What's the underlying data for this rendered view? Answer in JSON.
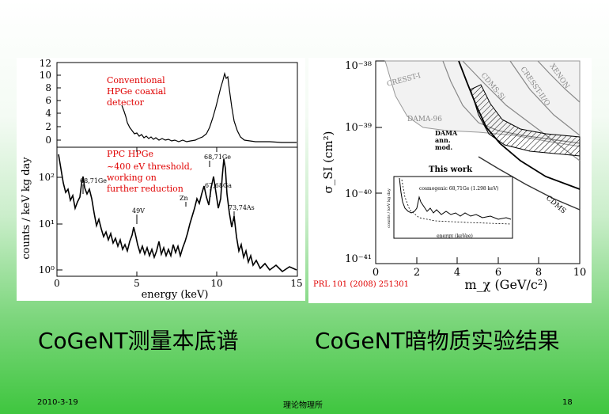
{
  "left_panel": {
    "top_annotation": [
      "Conventional",
      "HPGe coaxial",
      "detector"
    ],
    "bottom_annotation": [
      "PPC HPGe",
      "~400 eV threshold,",
      "working on",
      "further reduction"
    ],
    "ylabel": "counts / keV kg day",
    "xlabel": "energy (keV)",
    "top_yticks": [
      "0",
      "2",
      "4",
      "6",
      "8",
      "10",
      "12"
    ],
    "bottom_yticks": [
      "10⁰",
      "10¹",
      "10²"
    ],
    "xticks": [
      "0",
      "5",
      "10",
      "15"
    ],
    "peaks": [
      {
        "label": "68,71Ge"
      },
      {
        "label": "49V"
      },
      {
        "label": "Zn"
      },
      {
        "label": "67,68Ga"
      },
      {
        "label": "68,71Ge"
      },
      {
        "label": "73,74As"
      }
    ]
  },
  "right_panel": {
    "ylabel": "σ_SI (cm²)",
    "xlabel": "m_χ (GeV/c²)",
    "yticks": [
      "10⁻³⁸",
      "10⁻³⁹",
      "10⁻⁴⁰",
      "10⁻⁴¹"
    ],
    "xticks": [
      "0",
      "2",
      "4",
      "6",
      "8",
      "10"
    ],
    "curve_labels": {
      "cresst1": "CRESST-I",
      "cdms_si": "CDMS-Si",
      "cresst2": "CRESST-II/O",
      "xenon": "XENON",
      "dama96": "DAMA-96",
      "dama_mod": [
        "DAMA",
        "ann.",
        "mod."
      ],
      "this_work": "This work",
      "cdms": "CDMS"
    },
    "inset": {
      "ylabel": "counts / keV kg day",
      "xlabel": "energy (keVee)",
      "annotation": "cosmogenic 68,71Ge (1.298 keV)"
    },
    "citation": "PRL 101 (2008) 251301"
  },
  "titles": {
    "left": "CoGeNT测量本底谱",
    "right": "CoGeNT暗物质实验结果"
  },
  "footer": {
    "date": "2010-3-19",
    "org": "理论物理所",
    "page": "18"
  }
}
